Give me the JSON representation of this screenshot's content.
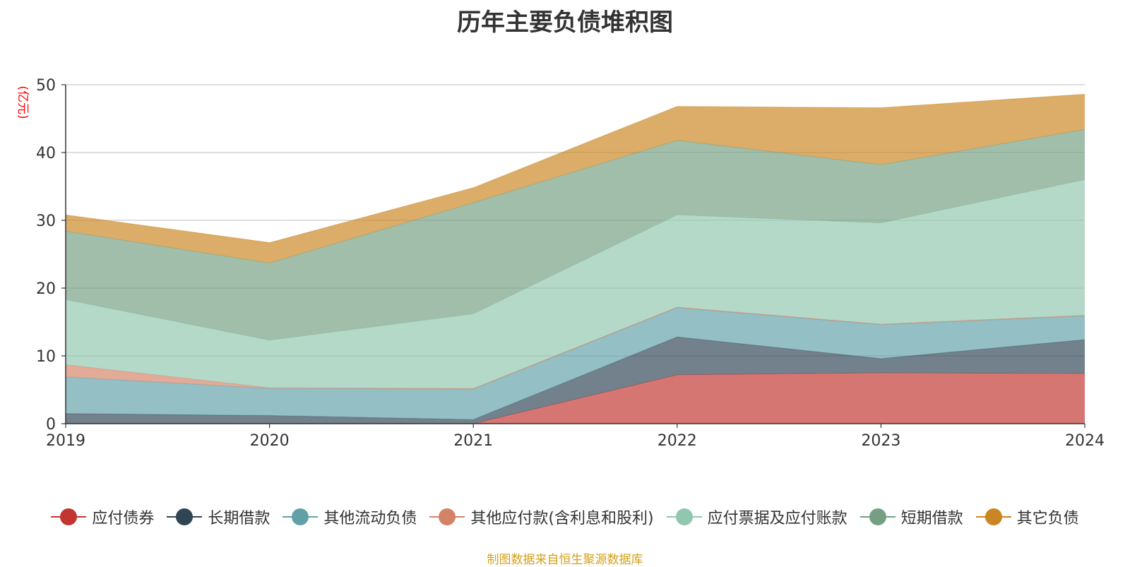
{
  "chart_data": {
    "type": "area",
    "stacked": true,
    "title": "历年主要负债堆积图",
    "ylabel": "(亿元)",
    "xlabel": "",
    "ylim": [
      0,
      50
    ],
    "yticks": [
      0,
      10,
      20,
      30,
      40,
      50
    ],
    "categories": [
      "2019",
      "2020",
      "2021",
      "2022",
      "2023",
      "2024"
    ],
    "grid": true,
    "legend_position": "bottom",
    "series": [
      {
        "name": "应付债券",
        "color": "#c23531",
        "values": [
          0,
          0,
          0,
          7.2,
          7.5,
          7.4
        ]
      },
      {
        "name": "长期借款",
        "color": "#2f4554",
        "values": [
          1.5,
          1.2,
          0.6,
          5.6,
          2.1,
          5.0
        ]
      },
      {
        "name": "其他流动负债",
        "color": "#61a0a8",
        "values": [
          5.4,
          4.0,
          4.5,
          4.3,
          5.0,
          3.5
        ]
      },
      {
        "name": "其他应付款(含利息和股利)",
        "color": "#d48265",
        "values": [
          1.8,
          0.1,
          0.1,
          0.1,
          0.1,
          0.1
        ]
      },
      {
        "name": "应付票据及应付账款",
        "color": "#91c7ae",
        "values": [
          9.6,
          7.0,
          11.0,
          13.6,
          14.9,
          20.0
        ]
      },
      {
        "name": "短期借款",
        "color": "#749f83",
        "values": [
          10.1,
          11.4,
          16.4,
          11.0,
          8.6,
          7.4
        ]
      },
      {
        "name": "其它负债",
        "color": "#ca8622",
        "values": [
          2.4,
          3.0,
          2.2,
          5.0,
          8.4,
          5.2
        ]
      }
    ],
    "source_note": "制图数据来自恒生聚源数据库"
  }
}
